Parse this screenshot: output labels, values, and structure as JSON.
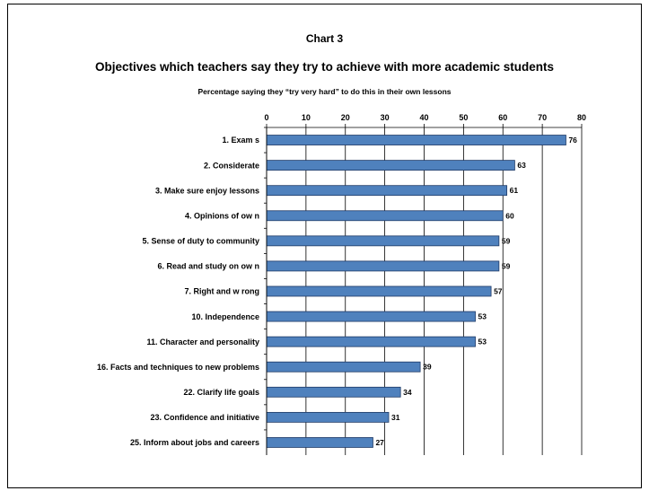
{
  "chart_data": {
    "type": "bar",
    "orientation": "horizontal",
    "label": "Chart 3",
    "title": "Objectives which teachers say they try to achieve with more academic students",
    "subtitle": "Percentage saying they “try very hard” to do this in their own lessons",
    "categories": [
      "1. Exam s",
      "2. Considerate",
      "3. Make sure enjoy lessons",
      "4. Opinions of ow n",
      "5. Sense of duty to community",
      "6. Read and study on ow n",
      "7. Right and w rong",
      "10. Independence",
      "11. Character and personality",
      "16. Facts and techniques to new problems",
      "22. Clarify life goals",
      "23. Confidence and initiative",
      "25. Inform about jobs and careers"
    ],
    "values": [
      76,
      63,
      61,
      60,
      59,
      59,
      57,
      53,
      53,
      39,
      34,
      31,
      27
    ],
    "data_labels": [
      "76",
      "63",
      "61",
      "60",
      "59",
      "59",
      "57",
      "53",
      "53",
      "39",
      "34",
      "31",
      "27"
    ],
    "xlim": [
      0,
      80
    ],
    "ticks": [
      "0",
      "10",
      "20",
      "30",
      "40",
      "50",
      "60",
      "70",
      "80"
    ],
    "tick_values": [
      0,
      10,
      20,
      30,
      40,
      50,
      60,
      70,
      80
    ],
    "axis_position": "top",
    "grid": true,
    "bar_color": "#4f81bd",
    "bar_edge_color": "#1f3a66"
  }
}
